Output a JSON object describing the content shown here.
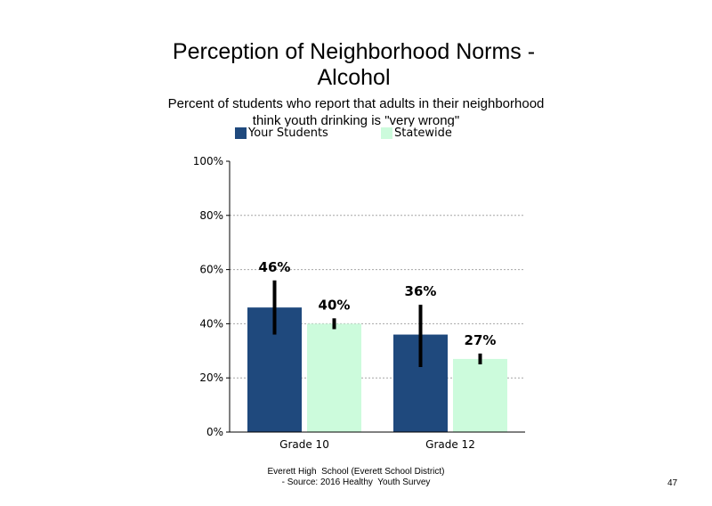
{
  "page": {
    "title_line1": "Perception of Neighborhood Norms -",
    "title_line2": "Alcohol",
    "subtitle_line1": "Percent of students who report that adults in their neighborhood",
    "subtitle_line2": "think youth drinking is \"very wrong\"",
    "footer_line1": "Everett High  School (Everett School District)",
    "footer_line2": "- Source: 2016 Healthy  Youth Survey",
    "page_number": "47"
  },
  "colors": {
    "your_students": "#1F497D",
    "statewide": "#CCFBDC",
    "error_bar": "#000000",
    "gridline": "#A6A6A6"
  },
  "chart_data": {
    "type": "bar",
    "title": "Perception of Neighborhood Norms - Alcohol",
    "subtitle": "Percent of students who report that adults in their neighborhood think youth drinking is \"very wrong\"",
    "categories": [
      "Grade 10",
      "Grade 12"
    ],
    "series": [
      {
        "name": "Your Students",
        "values": [
          46,
          36
        ],
        "labels": [
          "46%",
          "36%"
        ],
        "error_low": [
          36,
          24
        ],
        "error_high": [
          56,
          47
        ]
      },
      {
        "name": "Statewide",
        "values": [
          40,
          27
        ],
        "labels": [
          "40%",
          "27%"
        ],
        "error_low": [
          38,
          25
        ],
        "error_high": [
          42,
          29
        ]
      }
    ],
    "ylim": [
      0,
      100
    ],
    "yticks": [
      0,
      20,
      40,
      60,
      80,
      100
    ],
    "ytick_labels": [
      "0%",
      "20%",
      "40%",
      "60%",
      "80%",
      "100%"
    ],
    "xlabel": "",
    "ylabel": "",
    "grid": true,
    "legend_position": "top",
    "error_bars": true
  }
}
